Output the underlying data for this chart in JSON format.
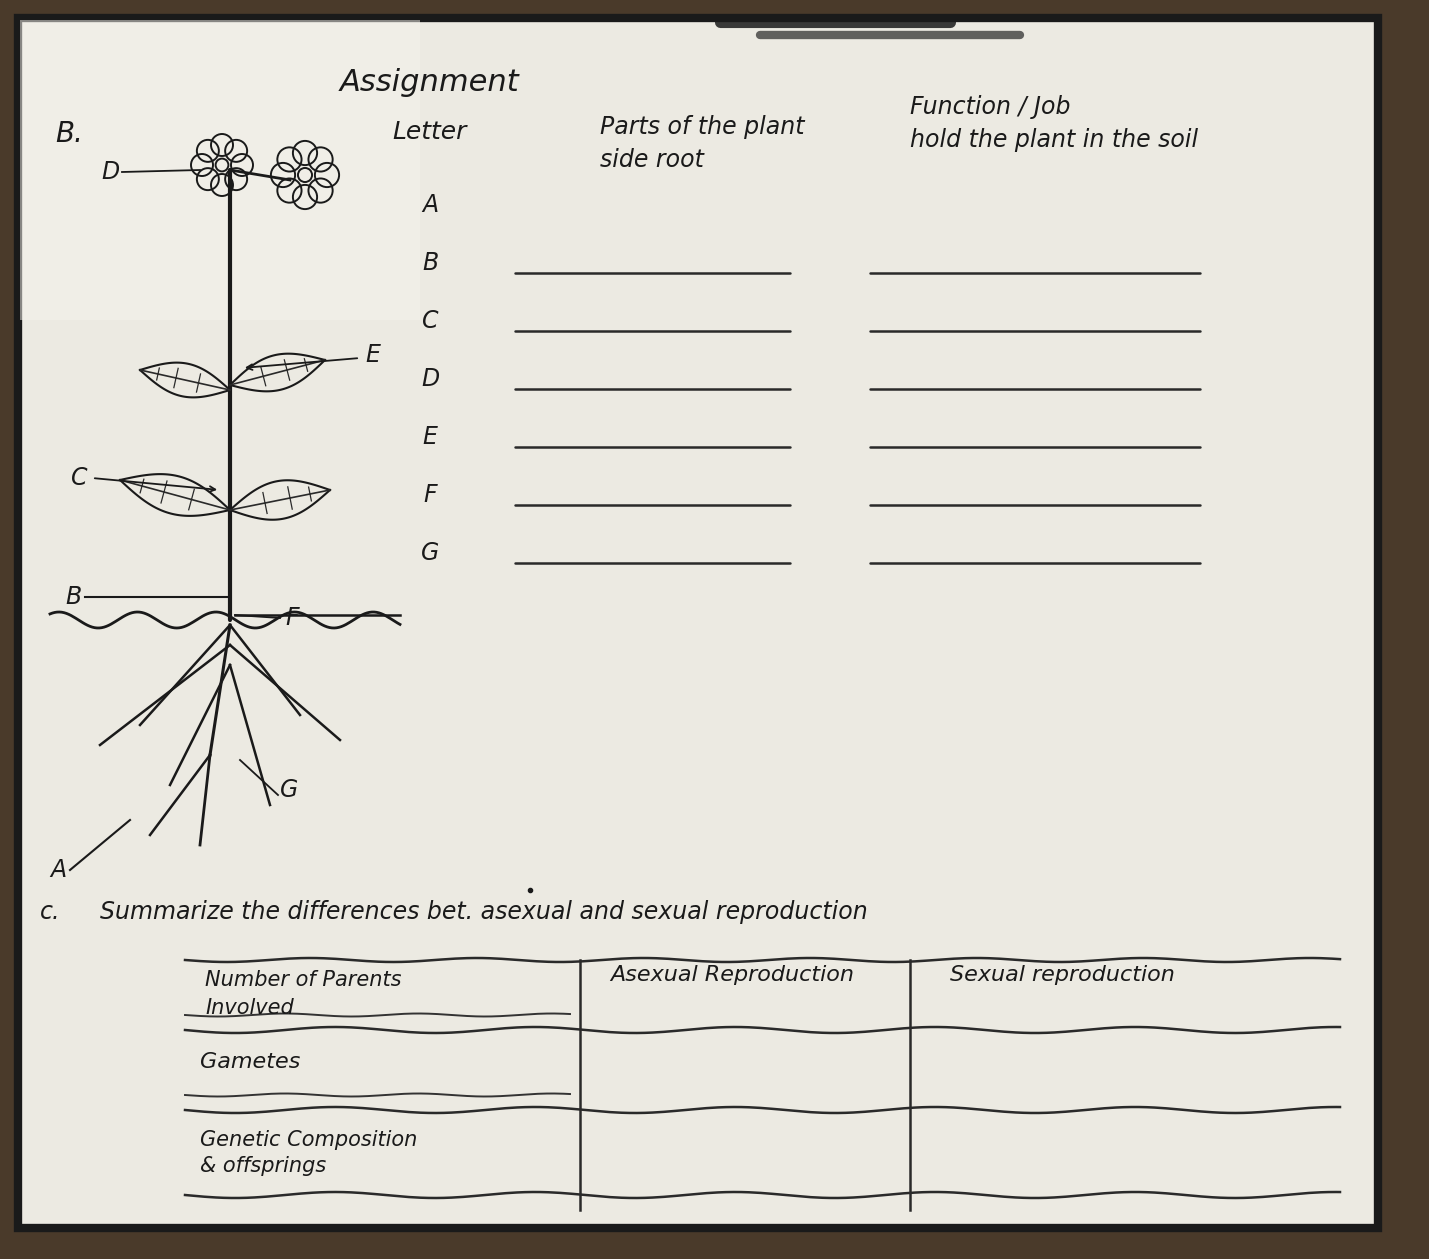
{
  "title": "Assignment",
  "board_bg": "#e8e7e0",
  "border_color": "#1a1a1a",
  "frame_bg": "#5a4a3a",
  "text_color": "#1a1a1a",
  "section_b_label": "B.",
  "section_c_label": "c.",
  "table_header_col1": "Letter",
  "table_header_col2_line1": "Parts of the plant",
  "table_header_col2_line2": "side root",
  "table_header_col3_line1": "Function / Job",
  "table_header_col3_line2": "hold the plant in the soil",
  "table_letters": [
    "A",
    "B",
    "C",
    "D",
    "E",
    "F",
    "G"
  ],
  "summarize_line1": "Summarize the differences bet. asexual and sexual reproduction",
  "col_header_mid": "Asexual Reproduction",
  "col_header_right": "Sexual reproduction",
  "row_label1_line1": "Number of Parents",
  "row_label1_line2": "Involved",
  "row_label2": "Gametes",
  "row_label3_line1": "Genetic Composition",
  "row_label3_line2": "& offsprings"
}
